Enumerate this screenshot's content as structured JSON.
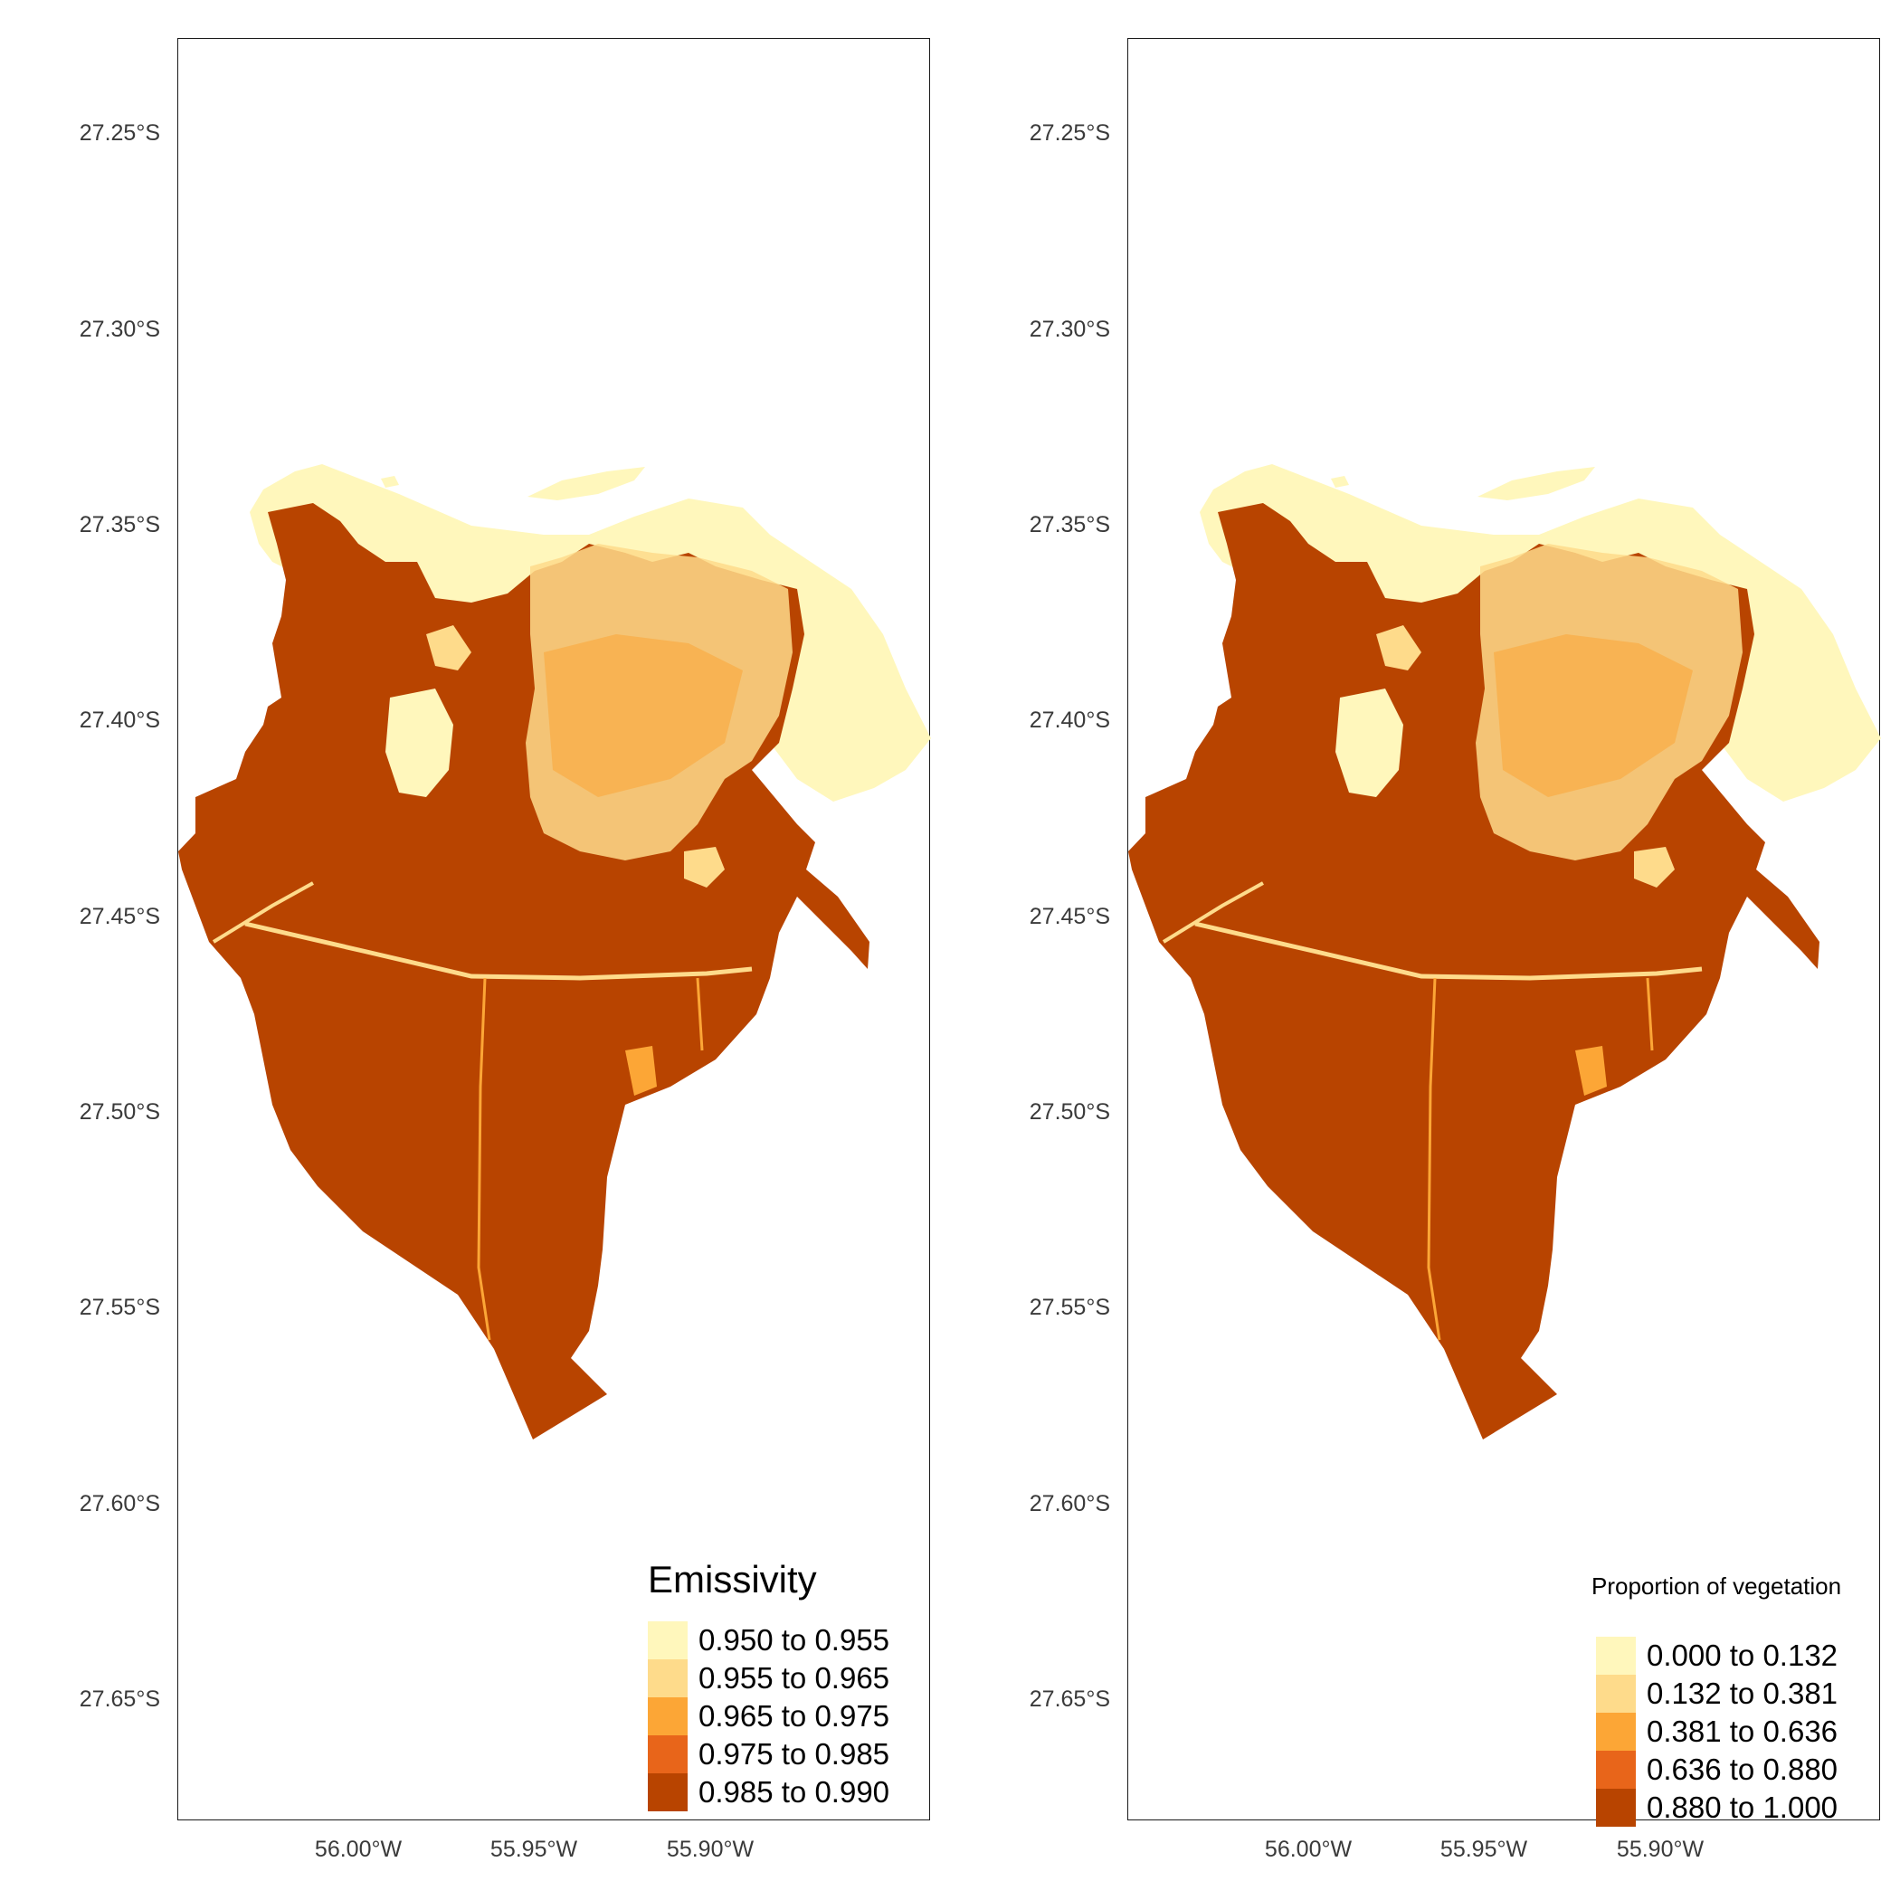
{
  "palette": [
    "#fff7bc",
    "#fedb8b",
    "#fca636",
    "#e8651a",
    "#b84400"
  ],
  "lat_labels": [
    "27.25°S",
    "27.30°S",
    "27.35°S",
    "27.40°S",
    "27.45°S",
    "27.50°S",
    "27.55°S",
    "27.60°S",
    "27.65°S"
  ],
  "lon_labels": [
    "56.00°W",
    "55.95°W",
    "55.90°W"
  ],
  "panels": [
    {
      "legend_title": "Emissivity",
      "legend_items": [
        "0.950 to 0.955",
        "0.955 to 0.965",
        "0.965 to 0.975",
        "0.975 to 0.985",
        "0.985 to 0.990"
      ]
    },
    {
      "legend_title": "Proportion of vegetation",
      "legend_items": [
        "0.000 to 0.132",
        "0.132 to 0.381",
        "0.381 to 0.636",
        "0.636 to 0.880",
        "0.880 to 1.000"
      ]
    }
  ]
}
